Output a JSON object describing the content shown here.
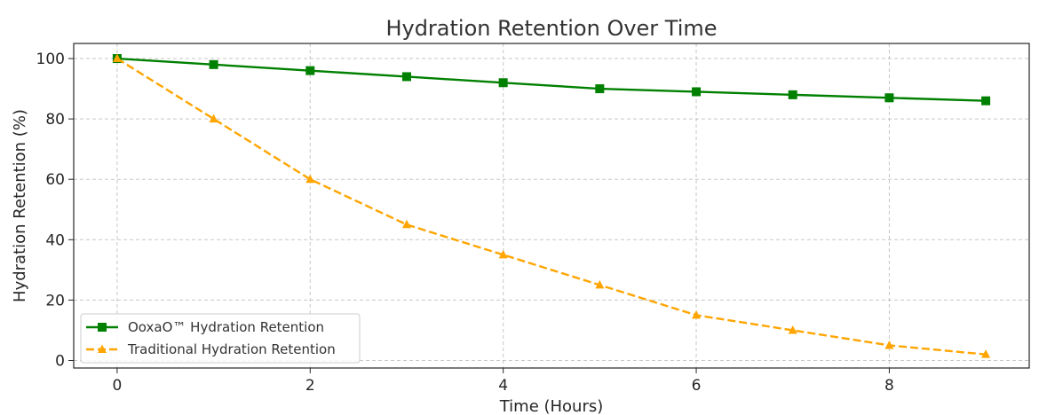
{
  "chart_data": {
    "type": "line",
    "title": "Hydration Retention Over Time",
    "xlabel": "Time (Hours)",
    "ylabel": "Hydration Retention (%)",
    "x": [
      0,
      1,
      2,
      3,
      4,
      5,
      6,
      7,
      8,
      9
    ],
    "xticks": [
      0,
      2,
      4,
      6,
      8
    ],
    "yticks": [
      0,
      20,
      40,
      60,
      80,
      100
    ],
    "xlim": [
      -0.45,
      9.45
    ],
    "ylim": [
      -2.5,
      105
    ],
    "grid": true,
    "legend_position": "lower-left",
    "series": [
      {
        "name": "OoxaO™ Hydration Retention",
        "values": [
          100,
          98,
          96,
          94,
          92,
          90,
          89,
          88,
          87,
          86
        ],
        "color": "#008000",
        "line_style": "solid",
        "marker": "square"
      },
      {
        "name": "Traditional Hydration Retention",
        "values": [
          100,
          80,
          60,
          45,
          35,
          25,
          15,
          10,
          5,
          2
        ],
        "color": "#FFA500",
        "line_style": "dashed",
        "marker": "triangle"
      }
    ]
  }
}
